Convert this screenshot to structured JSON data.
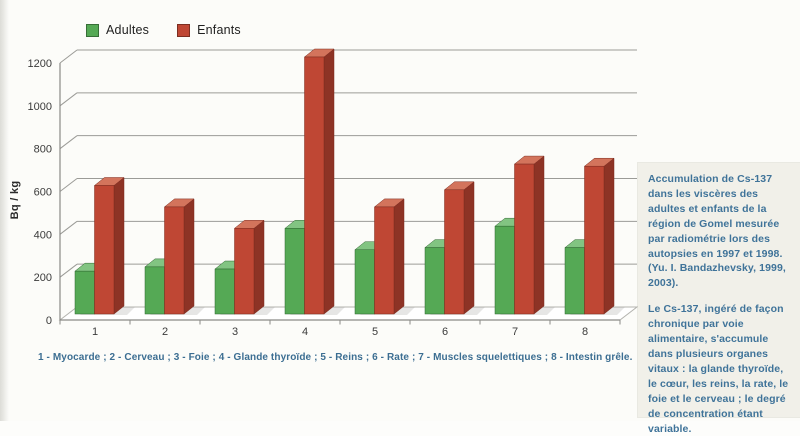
{
  "chart_data": {
    "type": "bar",
    "style": "3d-column",
    "categories": [
      "1",
      "2",
      "3",
      "4",
      "5",
      "6",
      "7",
      "8"
    ],
    "series": [
      {
        "name": "Adultes",
        "color": "#55a955",
        "color_top": "#82c482",
        "color_side": "#3b7d3b",
        "color_edge": "#2f6630",
        "values": [
          200,
          220,
          210,
          400,
          300,
          310,
          410,
          310
        ]
      },
      {
        "name": "Enfants",
        "color": "#bf4734",
        "color_top": "#d3745c",
        "color_side": "#8d3325",
        "color_edge": "#7c2b1f",
        "values": [
          600,
          500,
          400,
          1200,
          500,
          580,
          700,
          690
        ]
      }
    ],
    "title": "",
    "xlabel": "",
    "ylabel": "Bq / kg",
    "ylim": [
      0,
      1200
    ],
    "ytick_step": 200,
    "grid": true,
    "legend_position": "top-left",
    "gridline_color": "#9b9b97",
    "axis_color": "#8a8a86",
    "tick_label_color": "#3b3b3b"
  },
  "caption": "1 - Myocarde ; 2 - Cerveau ; 3 - Foie ; 4 - Glande thyroïde ; 5 - Reins ; 6 - Rate ; 7 - Muscles squelettiques ; 8 - Intestin grêle.",
  "side_panel": {
    "paragraphs": [
      "Accumulation de Cs-137 dans les viscères des adultes et enfants de la région de Gomel mesurée par radiométrie lors des autopsies en 1997 et 1998. (Yu. I. Bandazhevsky, 1999, 2003).",
      "Le Cs-137, ingéré de façon chronique par voie alimentaire, s'accumule dans plusieurs organes vitaux : la glande thyroïde, le cœur, les reins, la rate, le foie et le cerveau ; le degré de concentration étant variable.",
      ""
    ],
    "text_color": "#3f7399",
    "background": "#f1f0e9"
  }
}
